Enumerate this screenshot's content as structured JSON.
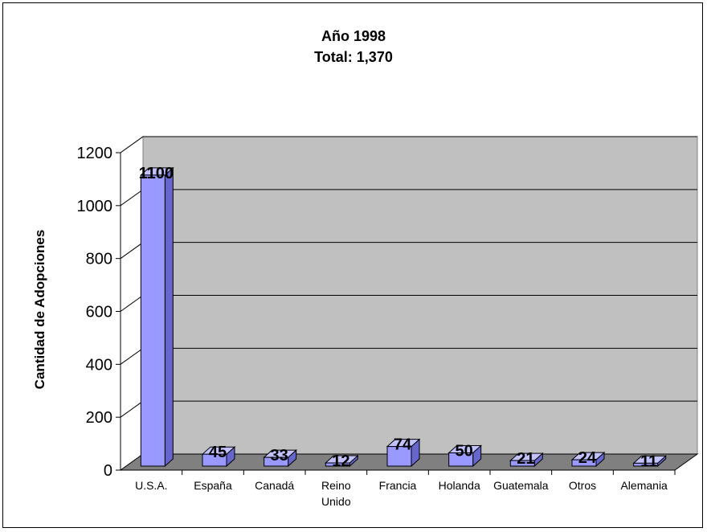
{
  "chart_data": {
    "type": "bar",
    "title_line1": "Año 1998",
    "title_line2": "Total: 1,370",
    "ylabel": "Cantidad de Adopciones",
    "xlabel": "",
    "categories": [
      [
        "U.S.A."
      ],
      [
        "España"
      ],
      [
        "Canadá"
      ],
      [
        "Reino",
        "Unido"
      ],
      [
        "Francia"
      ],
      [
        "Holanda"
      ],
      [
        "Guatemala"
      ],
      [
        "Otros"
      ],
      [
        "Alemania"
      ]
    ],
    "values": [
      1100,
      45,
      33,
      12,
      74,
      50,
      21,
      24,
      11
    ],
    "ylim": [
      0,
      1200
    ],
    "yticks": [
      0,
      200,
      400,
      600,
      800,
      1000,
      1200
    ],
    "grid": true,
    "legend": "none",
    "colors": {
      "bar_front": "#9999FF",
      "bar_top": "#C2C2FF",
      "bar_side": "#6666CC",
      "back_wall": "#C0C0C0",
      "floor": "#808080",
      "gridline": "#000000"
    }
  }
}
